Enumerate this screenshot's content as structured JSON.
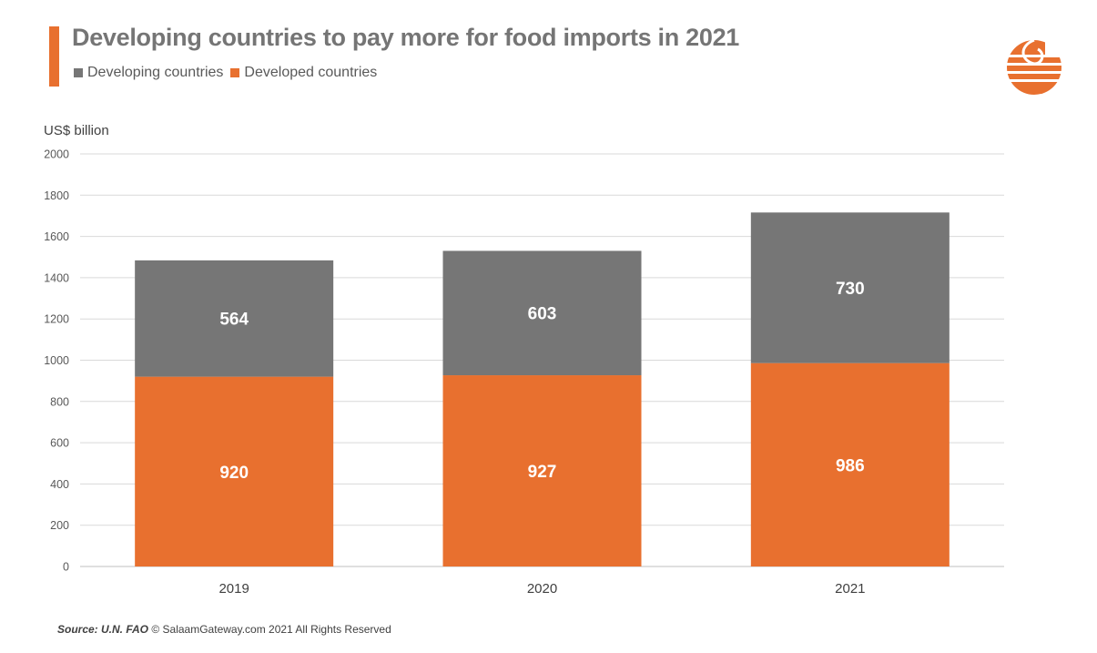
{
  "header": {
    "title": "Developing countries to pay more for food imports in 2021"
  },
  "colors": {
    "developing": "#767676",
    "developed": "#E8702F",
    "accent": "#E8702F",
    "grid": "#D9D9D9"
  },
  "footer": {
    "source_label": "Source: U.N. FAO",
    "copyright": "© SalaamGateway.com 2021 All Rights Reserved"
  },
  "logo_icon": "salaam-gateway-globe-icon",
  "chart_data": {
    "type": "bar",
    "stacked": true,
    "title": "Developing countries to pay more for food imports in 2021",
    "ylabel": "US$ billion",
    "xlabel": "",
    "ylim": [
      0,
      2000
    ],
    "yticks": [
      0,
      200,
      400,
      600,
      800,
      1000,
      1200,
      1400,
      1600,
      1800,
      2000
    ],
    "grid": true,
    "legend_position": "top-left",
    "categories": [
      "2019",
      "2020",
      "2021"
    ],
    "series": [
      {
        "name": "Developing countries",
        "values": [
          564,
          603,
          730
        ],
        "color": "#767676"
      },
      {
        "name": "Developed countries",
        "values": [
          920,
          927,
          986
        ],
        "color": "#E8702F"
      }
    ]
  }
}
